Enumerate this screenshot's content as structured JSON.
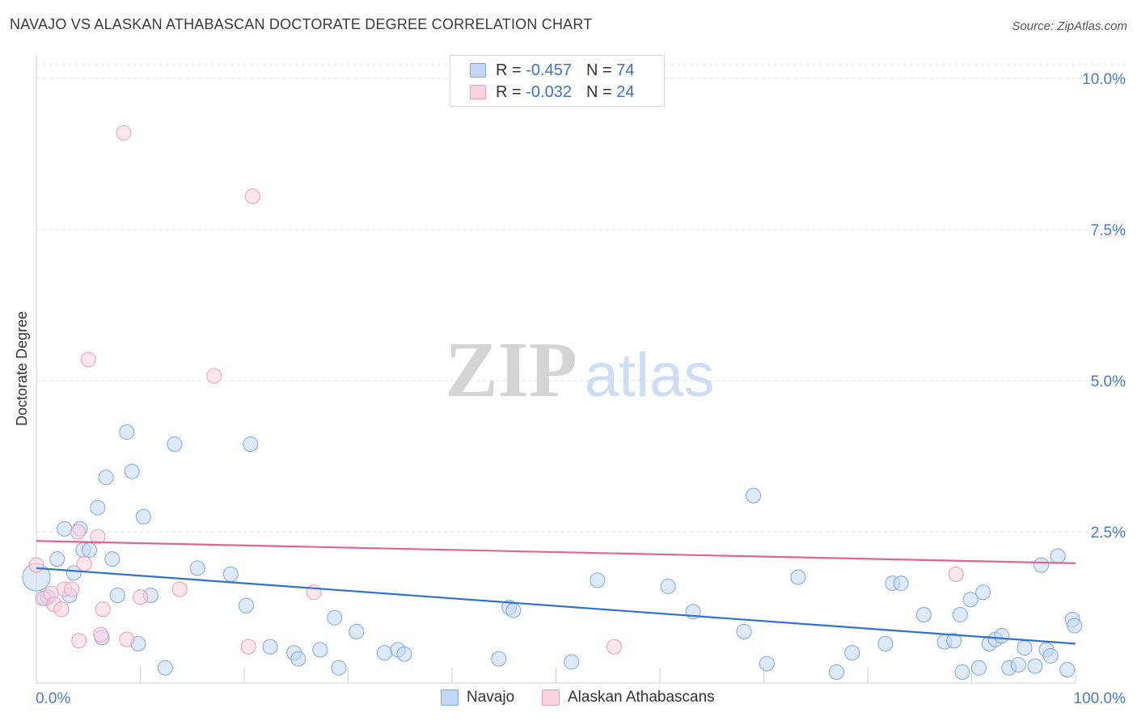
{
  "header": {
    "title": "NAVAJO VS ALASKAN ATHABASCAN DOCTORATE DEGREE CORRELATION CHART",
    "source": "Source: ZipAtlas.com"
  },
  "watermark": {
    "zip": "ZIP",
    "atlas": "atlas"
  },
  "legend": {
    "rows": [
      {
        "r_label": "R =",
        "r_value": "-0.457",
        "n_label": "N =",
        "n_value": "74",
        "color": "#7ea6e0"
      },
      {
        "r_label": "R =",
        "r_value": "-0.032",
        "n_label": "N =",
        "n_value": "24",
        "color": "#ee9ab2"
      }
    ]
  },
  "series_labels": {
    "navajo": "Navajo",
    "alaskan": "Alaskan Athabascans"
  },
  "chart_data": {
    "type": "scatter",
    "title": "NAVAJO VS ALASKAN ATHABASCAN DOCTORATE DEGREE CORRELATION CHART",
    "xlabel": "",
    "ylabel": "Doctorate Degree",
    "xlim": [
      0,
      100
    ],
    "ylim": [
      0,
      10.5
    ],
    "x_tick_labels": [
      "0.0%",
      "100.0%"
    ],
    "y_ticks": [
      2.5,
      5.0,
      7.5,
      10.0
    ],
    "y_tick_labels": [
      "2.5%",
      "5.0%",
      "7.5%",
      "10.0%"
    ],
    "grid": true,
    "series": [
      {
        "name": "Navajo",
        "color": "#7ea6e0",
        "fill": "#c2d7f6",
        "trend": {
          "x": [
            0,
            100
          ],
          "y": [
            1.9,
            0.65
          ]
        },
        "points": [
          [
            0.0,
            1.75
          ],
          [
            0.8,
            1.4
          ],
          [
            1.1,
            1.42
          ],
          [
            2.0,
            2.05
          ],
          [
            2.7,
            2.55
          ],
          [
            3.2,
            1.45
          ],
          [
            3.6,
            1.82
          ],
          [
            4.2,
            2.55
          ],
          [
            4.5,
            2.2
          ],
          [
            5.1,
            2.2
          ],
          [
            5.9,
            2.9
          ],
          [
            6.3,
            0.75
          ],
          [
            6.7,
            3.4
          ],
          [
            7.3,
            2.05
          ],
          [
            7.8,
            1.45
          ],
          [
            8.7,
            4.15
          ],
          [
            9.2,
            3.5
          ],
          [
            9.8,
            0.65
          ],
          [
            10.3,
            2.75
          ],
          [
            11.0,
            1.45
          ],
          [
            12.4,
            0.25
          ],
          [
            13.3,
            3.95
          ],
          [
            15.5,
            1.9
          ],
          [
            18.7,
            1.8
          ],
          [
            20.2,
            1.28
          ],
          [
            20.6,
            3.95
          ],
          [
            22.5,
            0.6
          ],
          [
            24.8,
            0.5
          ],
          [
            25.2,
            0.4
          ],
          [
            27.3,
            0.55
          ],
          [
            28.7,
            1.08
          ],
          [
            29.1,
            0.25
          ],
          [
            30.8,
            0.85
          ],
          [
            33.5,
            0.5
          ],
          [
            34.8,
            0.55
          ],
          [
            35.4,
            0.48
          ],
          [
            44.5,
            0.4
          ],
          [
            45.5,
            1.25
          ],
          [
            45.9,
            1.2
          ],
          [
            51.5,
            0.35
          ],
          [
            54.0,
            1.7
          ],
          [
            60.8,
            1.6
          ],
          [
            63.2,
            1.18
          ],
          [
            68.1,
            0.85
          ],
          [
            69.0,
            3.1
          ],
          [
            70.3,
            0.32
          ],
          [
            73.3,
            1.75
          ],
          [
            77.0,
            0.18
          ],
          [
            78.5,
            0.5
          ],
          [
            81.7,
            0.65
          ],
          [
            82.4,
            1.65
          ],
          [
            83.2,
            1.65
          ],
          [
            85.4,
            1.13
          ],
          [
            87.4,
            0.68
          ],
          [
            88.3,
            0.7
          ],
          [
            88.9,
            1.13
          ],
          [
            89.1,
            0.18
          ],
          [
            89.9,
            1.38
          ],
          [
            90.7,
            0.25
          ],
          [
            91.1,
            1.5
          ],
          [
            91.7,
            0.65
          ],
          [
            92.3,
            0.72
          ],
          [
            92.9,
            0.78
          ],
          [
            93.6,
            0.25
          ],
          [
            94.5,
            0.3
          ],
          [
            95.1,
            0.58
          ],
          [
            96.1,
            0.28
          ],
          [
            96.7,
            1.95
          ],
          [
            97.2,
            0.55
          ],
          [
            97.6,
            0.45
          ],
          [
            98.3,
            2.1
          ],
          [
            99.2,
            0.22
          ],
          [
            99.7,
            1.05
          ],
          [
            99.9,
            0.95
          ]
        ]
      },
      {
        "name": "Alaskan Athabascans",
        "color": "#ee9ab2",
        "fill": "#fbd3df",
        "trend": {
          "x": [
            0,
            100
          ],
          "y": [
            2.35,
            1.98
          ]
        },
        "points": [
          [
            0.0,
            1.95
          ],
          [
            0.6,
            1.4
          ],
          [
            1.4,
            1.48
          ],
          [
            1.7,
            1.3
          ],
          [
            2.4,
            1.22
          ],
          [
            2.7,
            1.55
          ],
          [
            3.4,
            1.55
          ],
          [
            4.0,
            2.5
          ],
          [
            4.1,
            0.7
          ],
          [
            4.6,
            1.97
          ],
          [
            5.0,
            5.35
          ],
          [
            5.9,
            2.42
          ],
          [
            6.2,
            0.8
          ],
          [
            6.4,
            1.22
          ],
          [
            8.4,
            9.1
          ],
          [
            8.7,
            0.72
          ],
          [
            10.0,
            1.42
          ],
          [
            13.8,
            1.55
          ],
          [
            17.1,
            5.08
          ],
          [
            20.4,
            0.6
          ],
          [
            20.8,
            8.05
          ],
          [
            26.7,
            1.5
          ],
          [
            55.6,
            0.6
          ],
          [
            88.5,
            1.8
          ]
        ]
      }
    ]
  }
}
